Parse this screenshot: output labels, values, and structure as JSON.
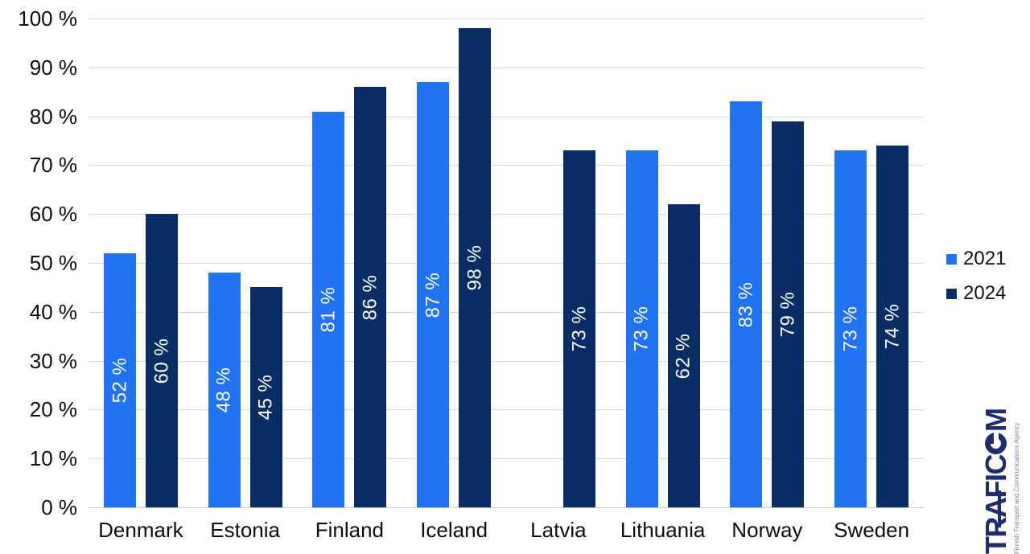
{
  "chart_data": {
    "type": "bar",
    "title": "",
    "xlabel": "",
    "ylabel": "",
    "categories": [
      "Denmark",
      "Estonia",
      "Finland",
      "Iceland",
      "Latvia",
      "Lithuania",
      "Norway",
      "Sweden"
    ],
    "series": [
      {
        "name": "2021",
        "color": "#2173f2",
        "values": [
          52,
          48,
          81,
          87,
          null,
          73,
          83,
          73
        ]
      },
      {
        "name": "2024",
        "color": "#0b2d66",
        "values": [
          60,
          45,
          86,
          98,
          73,
          62,
          79,
          74
        ]
      }
    ],
    "ylim": [
      0,
      100
    ],
    "ytick_step": 10,
    "ytick_suffix": " %",
    "ytick_labels": [
      "0 %",
      "10 %",
      "20 %",
      "30 %",
      "40 %",
      "50 %",
      "60 %",
      "70 %",
      "80 %",
      "90 %",
      "100 %"
    ],
    "bar_label_suffix": " %",
    "bar_labels": {
      "2021": [
        "52 %",
        "48 %",
        "81 %",
        "87 %",
        null,
        "73 %",
        "83 %",
        "73 %"
      ],
      "2024": [
        "60 %",
        "45 %",
        "86 %",
        "98 %",
        "73 %",
        "62 %",
        "79 %",
        "74 %"
      ]
    },
    "grid": true,
    "gridline_color": "#d9d9d9",
    "legend_position": "right",
    "bar_label_color": "#ffffff",
    "bar_label_rotation": -90
  },
  "legend": {
    "items": [
      {
        "label": "2021",
        "color": "#2173f2"
      },
      {
        "label": "2024",
        "color": "#0b2d66"
      }
    ]
  },
  "logo": {
    "wordmark": "TRAFICOM",
    "tagline": "Finnish Transport and Communications Agency",
    "color": "#1e2d6d"
  }
}
